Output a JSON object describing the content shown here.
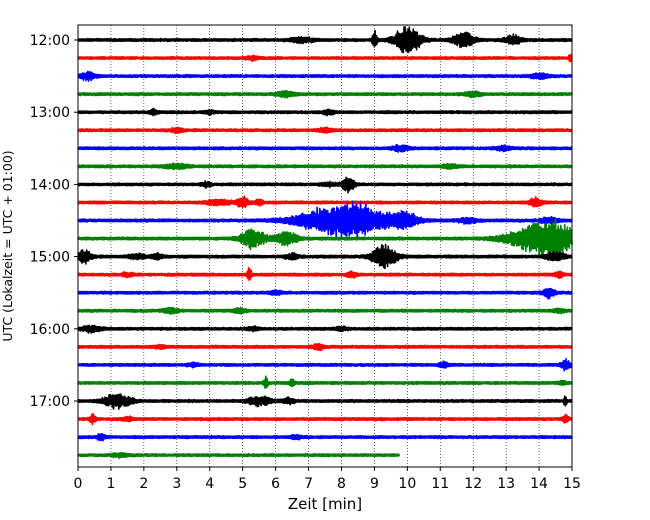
{
  "chart_data": {
    "type": "line",
    "title": "",
    "xlabel": "Zeit  [min]",
    "ylabel": "UTC (Lokalzeit = UTC + 01:00)",
    "xlim": [
      0,
      15
    ],
    "x_ticks": [
      0,
      1,
      2,
      3,
      4,
      5,
      6,
      7,
      8,
      9,
      10,
      11,
      12,
      13,
      14,
      15
    ],
    "x_tick_labels": [
      "0",
      "1",
      "2",
      "3",
      "4",
      "5",
      "6",
      "7",
      "8",
      "9",
      "10",
      "11",
      "12",
      "13",
      "14",
      "15"
    ],
    "y_ticks": [
      {
        "label": "12:00",
        "row": 0
      },
      {
        "label": "13:00",
        "row": 4
      },
      {
        "label": "14:00",
        "row": 8
      },
      {
        "label": "15:00",
        "row": 12
      },
      {
        "label": "16:00",
        "row": 16
      },
      {
        "label": "17:00",
        "row": 20
      }
    ],
    "grid": "x-dotted",
    "row_minutes": 15,
    "row_colors": [
      "#000000",
      "#ff0000",
      "#0000ff",
      "#008000"
    ],
    "rows": [
      {
        "row": 0,
        "start": "12:00",
        "color": "#000000",
        "end_min": 15,
        "noise": 0.25,
        "events": [
          {
            "t": 9.0,
            "amp": 12,
            "dur": 0.15
          },
          {
            "t": 10.0,
            "amp": 14,
            "dur": 0.9
          },
          {
            "t": 11.7,
            "amp": 9,
            "dur": 0.7
          },
          {
            "t": 13.2,
            "amp": 5,
            "dur": 0.6
          },
          {
            "t": 6.8,
            "amp": 3,
            "dur": 0.8
          }
        ]
      },
      {
        "row": 1,
        "start": "12:15",
        "color": "#ff0000",
        "end_min": 15,
        "noise": 0.2,
        "events": [
          {
            "t": 5.3,
            "amp": 2.5,
            "dur": 0.4
          },
          {
            "t": 14.95,
            "amp": 5,
            "dur": 0.1
          }
        ]
      },
      {
        "row": 2,
        "start": "12:30",
        "color": "#0000ff",
        "end_min": 15,
        "noise": 0.25,
        "events": [
          {
            "t": 0.3,
            "amp": 5,
            "dur": 0.5
          },
          {
            "t": 14.0,
            "amp": 3,
            "dur": 0.6
          }
        ]
      },
      {
        "row": 3,
        "start": "12:45",
        "color": "#008000",
        "end_min": 15,
        "noise": 0.25,
        "events": [
          {
            "t": 6.3,
            "amp": 3,
            "dur": 0.6
          },
          {
            "t": 12.0,
            "amp": 3,
            "dur": 0.5
          }
        ]
      },
      {
        "row": 4,
        "start": "13:00",
        "color": "#000000",
        "end_min": 15,
        "noise": 0.25,
        "events": [
          {
            "t": 2.3,
            "amp": 2.5,
            "dur": 0.3
          },
          {
            "t": 4.0,
            "amp": 2,
            "dur": 0.3
          },
          {
            "t": 7.6,
            "amp": 2.5,
            "dur": 0.4
          }
        ]
      },
      {
        "row": 5,
        "start": "13:15",
        "color": "#ff0000",
        "end_min": 15,
        "noise": 0.25,
        "events": [
          {
            "t": 3.0,
            "amp": 2.5,
            "dur": 0.4
          },
          {
            "t": 7.5,
            "amp": 2.5,
            "dur": 0.4
          }
        ]
      },
      {
        "row": 6,
        "start": "13:30",
        "color": "#0000ff",
        "end_min": 15,
        "noise": 0.25,
        "events": [
          {
            "t": 9.8,
            "amp": 3,
            "dur": 0.6
          },
          {
            "t": 12.9,
            "amp": 2.5,
            "dur": 0.5
          }
        ]
      },
      {
        "row": 7,
        "start": "13:45",
        "color": "#008000",
        "end_min": 15,
        "noise": 0.25,
        "events": [
          {
            "t": 3.0,
            "amp": 2.5,
            "dur": 0.8
          },
          {
            "t": 11.3,
            "amp": 2.5,
            "dur": 0.5
          }
        ]
      },
      {
        "row": 8,
        "start": "14:00",
        "color": "#000000",
        "end_min": 15,
        "noise": 0.2,
        "events": [
          {
            "t": 3.9,
            "amp": 3,
            "dur": 0.3
          },
          {
            "t": 8.2,
            "amp": 9,
            "dur": 0.4
          },
          {
            "t": 7.6,
            "amp": 2,
            "dur": 0.5
          }
        ]
      },
      {
        "row": 9,
        "start": "14:15",
        "color": "#ff0000",
        "end_min": 15,
        "noise": 0.25,
        "events": [
          {
            "t": 4.3,
            "amp": 3,
            "dur": 0.8
          },
          {
            "t": 5.0,
            "amp": 6,
            "dur": 0.4
          },
          {
            "t": 5.5,
            "amp": 3,
            "dur": 0.3
          },
          {
            "t": 13.9,
            "amp": 5,
            "dur": 0.4
          }
        ]
      },
      {
        "row": 10,
        "start": "14:30",
        "color": "#0000ff",
        "end_min": 15,
        "noise": 0.3,
        "events": [
          {
            "t": 8.1,
            "amp": 20,
            "dur": 2.8
          },
          {
            "t": 9.9,
            "amp": 8,
            "dur": 0.9
          },
          {
            "t": 11.8,
            "amp": 3,
            "dur": 0.6
          },
          {
            "t": 14.3,
            "amp": 3,
            "dur": 0.6
          }
        ]
      },
      {
        "row": 11,
        "start": "14:45",
        "color": "#008000",
        "end_min": 15,
        "noise": 0.3,
        "events": [
          {
            "t": 5.3,
            "amp": 10,
            "dur": 0.8
          },
          {
            "t": 6.3,
            "amp": 7,
            "dur": 0.8
          },
          {
            "t": 14.2,
            "amp": 20,
            "dur": 2.2
          }
        ]
      },
      {
        "row": 12,
        "start": "15:00",
        "color": "#000000",
        "end_min": 15,
        "noise": 0.3,
        "events": [
          {
            "t": 0.2,
            "amp": 7,
            "dur": 0.5
          },
          {
            "t": 1.8,
            "amp": 3,
            "dur": 0.5
          },
          {
            "t": 2.4,
            "amp": 3,
            "dur": 0.4
          },
          {
            "t": 6.5,
            "amp": 4,
            "dur": 0.4
          },
          {
            "t": 9.3,
            "amp": 13,
            "dur": 0.8
          },
          {
            "t": 14.5,
            "amp": 5,
            "dur": 0.6
          }
        ]
      },
      {
        "row": 13,
        "start": "15:15",
        "color": "#ff0000",
        "end_min": 15,
        "noise": 0.25,
        "events": [
          {
            "t": 5.2,
            "amp": 9,
            "dur": 0.15
          },
          {
            "t": 8.3,
            "amp": 4,
            "dur": 0.3
          },
          {
            "t": 1.5,
            "amp": 2,
            "dur": 0.4
          },
          {
            "t": 14.6,
            "amp": 3,
            "dur": 0.3
          }
        ]
      },
      {
        "row": 14,
        "start": "15:30",
        "color": "#0000ff",
        "end_min": 15,
        "noise": 0.25,
        "events": [
          {
            "t": 14.3,
            "amp": 5,
            "dur": 0.4
          },
          {
            "t": 6.0,
            "amp": 2,
            "dur": 0.4
          }
        ]
      },
      {
        "row": 15,
        "start": "15:45",
        "color": "#008000",
        "end_min": 15,
        "noise": 0.25,
        "events": [
          {
            "t": 2.8,
            "amp": 3.5,
            "dur": 0.5
          },
          {
            "t": 4.9,
            "amp": 2.5,
            "dur": 0.4
          },
          {
            "t": 14.6,
            "amp": 2.5,
            "dur": 0.4
          }
        ]
      },
      {
        "row": 16,
        "start": "16:00",
        "color": "#000000",
        "end_min": 15,
        "noise": 0.25,
        "events": [
          {
            "t": 0.4,
            "amp": 3.5,
            "dur": 0.6
          },
          {
            "t": 5.3,
            "amp": 2,
            "dur": 0.4
          },
          {
            "t": 8.0,
            "amp": 2,
            "dur": 0.4
          }
        ]
      },
      {
        "row": 17,
        "start": "16:15",
        "color": "#ff0000",
        "end_min": 15,
        "noise": 0.25,
        "events": [
          {
            "t": 7.3,
            "amp": 3,
            "dur": 0.4
          },
          {
            "t": 2.5,
            "amp": 2,
            "dur": 0.4
          }
        ]
      },
      {
        "row": 18,
        "start": "16:30",
        "color": "#0000ff",
        "end_min": 15,
        "noise": 0.25,
        "events": [
          {
            "t": 11.1,
            "amp": 3,
            "dur": 0.3
          },
          {
            "t": 14.8,
            "amp": 6,
            "dur": 0.3
          },
          {
            "t": 3.5,
            "amp": 2,
            "dur": 0.4
          }
        ]
      },
      {
        "row": 19,
        "start": "16:45",
        "color": "#008000",
        "end_min": 15,
        "noise": 0.25,
        "events": [
          {
            "t": 5.7,
            "amp": 6,
            "dur": 0.15
          },
          {
            "t": 6.5,
            "amp": 5,
            "dur": 0.15
          },
          {
            "t": 14.7,
            "amp": 2,
            "dur": 0.3
          }
        ]
      },
      {
        "row": 20,
        "start": "17:00",
        "color": "#000000",
        "end_min": 15,
        "noise": 0.25,
        "events": [
          {
            "t": 1.2,
            "amp": 8,
            "dur": 0.9
          },
          {
            "t": 5.5,
            "amp": 5,
            "dur": 0.8
          },
          {
            "t": 6.4,
            "amp": 3,
            "dur": 0.4
          },
          {
            "t": 14.8,
            "amp": 6,
            "dur": 0.1
          }
        ]
      },
      {
        "row": 21,
        "start": "17:15",
        "color": "#ff0000",
        "end_min": 15,
        "noise": 0.25,
        "events": [
          {
            "t": 0.45,
            "amp": 5,
            "dur": 0.2
          },
          {
            "t": 1.5,
            "amp": 2,
            "dur": 0.4
          },
          {
            "t": 14.8,
            "amp": 4,
            "dur": 0.2
          }
        ]
      },
      {
        "row": 22,
        "start": "17:30",
        "color": "#0000ff",
        "end_min": 15,
        "noise": 0.25,
        "events": [
          {
            "t": 0.7,
            "amp": 3,
            "dur": 0.3
          },
          {
            "t": 6.6,
            "amp": 2,
            "dur": 0.4
          }
        ]
      },
      {
        "row": 23,
        "start": "17:45",
        "color": "#008000",
        "end_min": 9.75,
        "noise": 0.2,
        "events": [
          {
            "t": 1.3,
            "amp": 2,
            "dur": 0.6
          }
        ]
      }
    ]
  }
}
